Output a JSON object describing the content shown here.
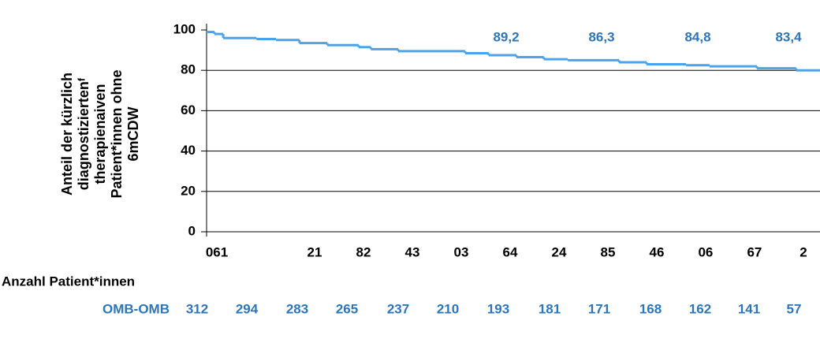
{
  "chart_data": {
    "type": "step",
    "y_label": [
      "Anteil der kürzlich",
      "diagnostiziertenᶠ",
      "therapienaiven",
      "Patient*innen ohne",
      "6mCDW"
    ],
    "ylim": [
      0,
      100
    ],
    "yticks": [
      0,
      20,
      40,
      60,
      80,
      100
    ],
    "xlim": [
      -0.21,
      12.34
    ],
    "xticks": [
      {
        "value": 0,
        "label": "061"
      },
      {
        "value": 2,
        "label": "21"
      },
      {
        "value": 3,
        "label": "82"
      },
      {
        "value": 4,
        "label": "43"
      },
      {
        "value": 5,
        "label": "03"
      },
      {
        "value": 6,
        "label": "64"
      },
      {
        "value": 7,
        "label": "24"
      },
      {
        "value": 8,
        "label": "85"
      },
      {
        "value": 9,
        "label": "46"
      },
      {
        "value": 10,
        "label": "06"
      },
      {
        "value": 11,
        "label": "67"
      },
      {
        "value": 12,
        "label": "2"
      }
    ],
    "grid": true,
    "series": [
      {
        "color": "#4da3ea",
        "x": [
          -0.21,
          -0.05,
          0.13,
          0.81,
          1.21,
          1.69,
          2.26,
          2.9,
          3.15,
          3.71,
          5.08,
          5.56,
          6.13,
          6.69,
          7.18,
          8.23,
          8.79,
          9.6,
          10.08,
          11.05,
          11.85
        ],
        "values": [
          99,
          98,
          96,
          95.5,
          95,
          93.5,
          92.5,
          91.5,
          90.5,
          89.5,
          88.5,
          87.5,
          86.5,
          85.5,
          85,
          84,
          83,
          82.5,
          82,
          81,
          80
        ]
      }
    ],
    "annotations": [
      "89,2",
      "86,3",
      "84,8",
      "83,4"
    ],
    "risk_table": {
      "title": "Anzahl Patient*innen",
      "rows": [
        {
          "name": "OMB-OMB",
          "values": [
            "312",
            "294",
            "283",
            "265",
            "237",
            "210",
            "193",
            "181",
            "171",
            "168",
            "162",
            "141",
            "57"
          ]
        }
      ]
    }
  }
}
